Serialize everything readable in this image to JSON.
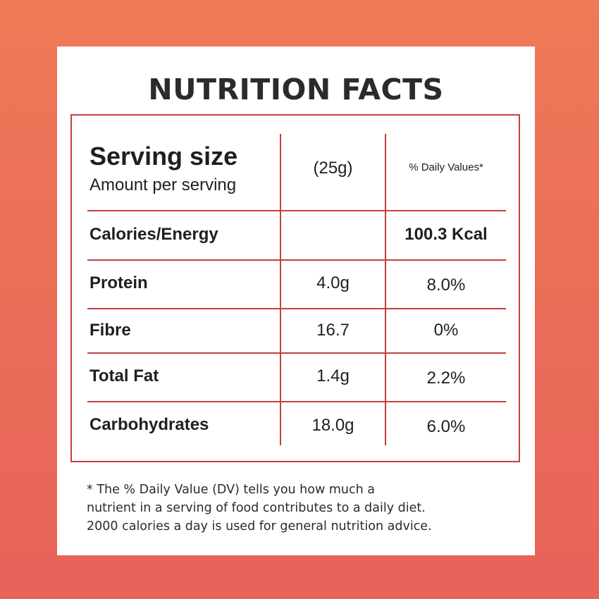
{
  "title": "NUTRITION FACTS",
  "header": {
    "serving_size_label": "Serving size",
    "amount_per_serving_label": "Amount per serving",
    "serving_amount": "(25g)",
    "daily_values_label": "% Daily Values*"
  },
  "rows": [
    {
      "nutrient": "Calories/Energy",
      "amount": "",
      "daily_value": "100.3 Kcal"
    },
    {
      "nutrient": "Protein",
      "amount": "4.0g",
      "daily_value": "8.0%"
    },
    {
      "nutrient": "Fibre",
      "amount": "16.7",
      "daily_value": "0%"
    },
    {
      "nutrient": "Total Fat",
      "amount": "1.4g",
      "daily_value": "2.2%"
    },
    {
      "nutrient": "Carbohydrates",
      "amount": "18.0g",
      "daily_value": "6.0%"
    }
  ],
  "footnote": {
    "line1": "* The % Daily Value (DV) tells you how much a",
    "line2": "nutrient in a serving of food contributes to a daily diet.",
    "line3": "2000 calories a day is used for general nutrition advice."
  },
  "colors": {
    "background": "#ec6f58",
    "card": "#ffffff",
    "border": "#c53f3f",
    "text": "#1f1f1f"
  }
}
